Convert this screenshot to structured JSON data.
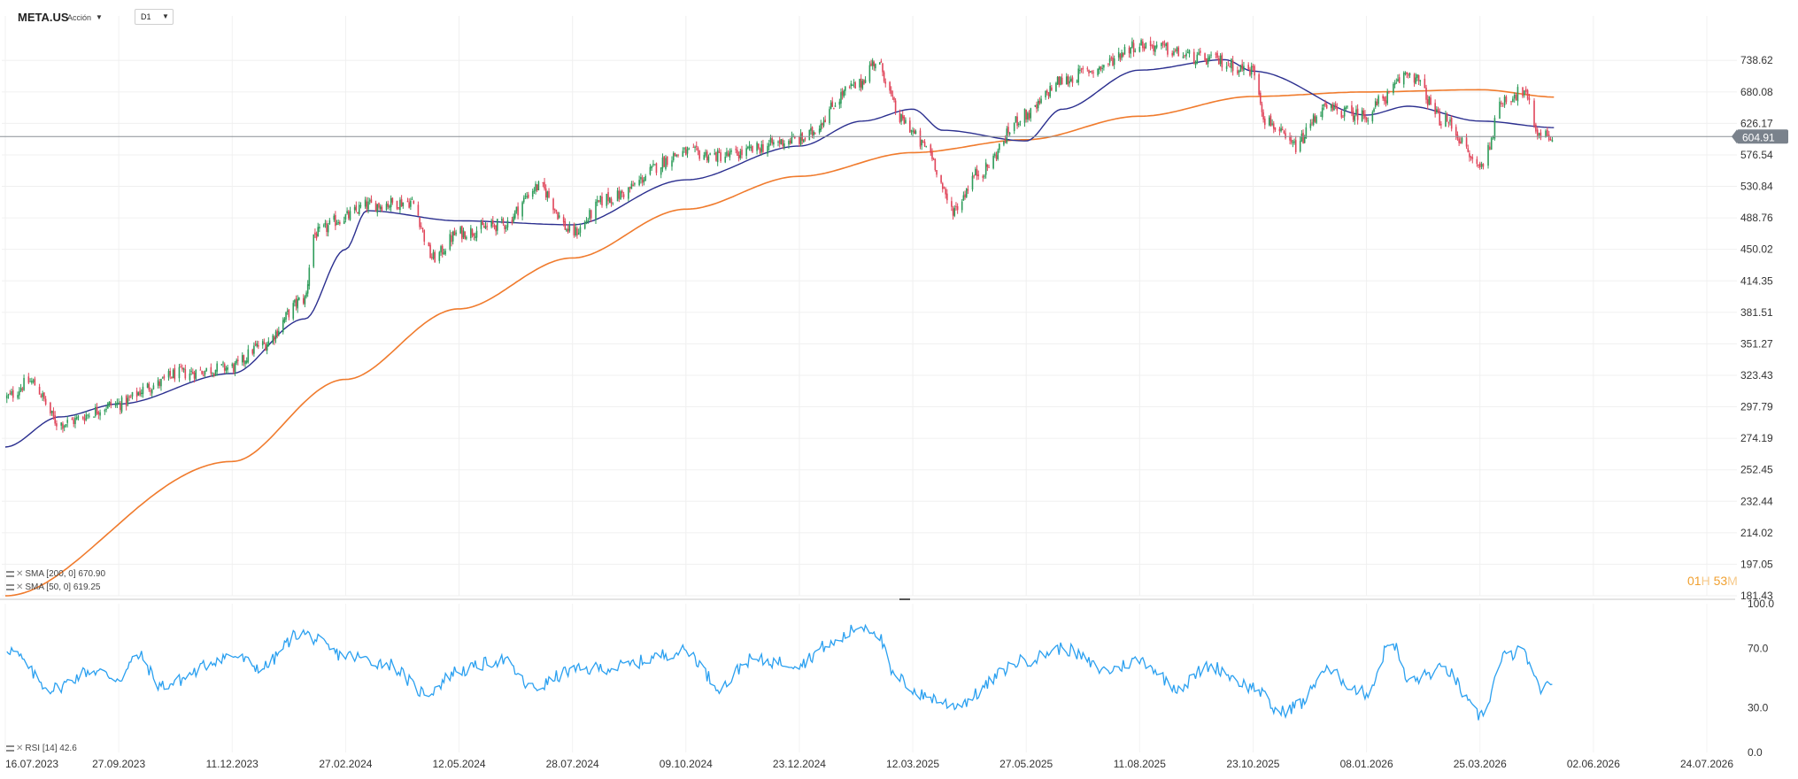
{
  "header": {
    "symbol": "META.US",
    "instrument_type": "Acción",
    "timeframe": "D1"
  },
  "indicators": {
    "sma200": "SMA [200, 0] 670.90",
    "sma50": "SMA [50, 0] 619.25",
    "rsi": "RSI [14] 42.6"
  },
  "countdown": {
    "hours": "01",
    "h": "H",
    "minutes": "53",
    "m": "M"
  },
  "colors": {
    "up": "#2e9c5a",
    "down": "#e0455a",
    "sma50": "#2b2f8f",
    "sma200": "#f07b2d",
    "rsi": "#2aa0f0",
    "price_tag": "#7a828c"
  },
  "chart_data": [
    {
      "type": "candlestick",
      "title": "META.US",
      "price_axis_ticks": [
        738.62,
        680.08,
        626.17,
        576.54,
        530.84,
        488.76,
        450.02,
        414.35,
        381.51,
        351.27,
        323.43,
        297.79,
        274.19,
        252.45,
        232.44,
        214.02,
        197.05,
        181.43
      ],
      "price_scale": "log",
      "ylim": [
        181.43,
        830
      ],
      "last_price": 604.91,
      "x_tick_labels": [
        "16.07.2023",
        "27.09.2023",
        "11.12.2023",
        "27.02.2024",
        "12.05.2024",
        "28.07.2024",
        "09.10.2024",
        "23.12.2024",
        "12.03.2025",
        "27.05.2025",
        "11.08.2025",
        "23.10.2025",
        "08.01.2026",
        "25.03.2026",
        "02.06.2026",
        "24.07.2026"
      ],
      "close_anchors": [
        [
          "16.07.2023",
          305
        ],
        [
          "01.08.2023",
          318
        ],
        [
          "20.08.2023",
          285
        ],
        [
          "27.09.2023",
          300
        ],
        [
          "20.10.2023",
          315
        ],
        [
          "05.11.2023",
          325
        ],
        [
          "11.12.2023",
          330
        ],
        [
          "31.12.2023",
          350
        ],
        [
          "30.01.2024",
          395
        ],
        [
          "05.02.2024",
          468
        ],
        [
          "27.02.2024",
          490
        ],
        [
          "12.03.2024",
          505
        ],
        [
          "10.04.2024",
          510
        ],
        [
          "25.04.2024",
          440
        ],
        [
          "12.05.2024",
          470
        ],
        [
          "10.06.2024",
          480
        ],
        [
          "05.07.2024",
          530
        ],
        [
          "28.07.2024",
          470
        ],
        [
          "20.08.2024",
          515
        ],
        [
          "09.10.2024",
          580
        ],
        [
          "01.11.2024",
          575
        ],
        [
          "23.12.2024",
          600
        ],
        [
          "01.02.2025",
          690
        ],
        [
          "14.02.2025",
          736
        ],
        [
          "05.03.2025",
          630
        ],
        [
          "20.03.2025",
          590
        ],
        [
          "08.04.2025",
          500
        ],
        [
          "25.04.2025",
          550
        ],
        [
          "27.05.2025",
          640
        ],
        [
          "20.06.2025",
          700
        ],
        [
          "10.07.2025",
          720
        ],
        [
          "11.08.2025",
          770
        ],
        [
          "25.09.2025",
          740
        ],
        [
          "23.10.2025",
          720
        ],
        [
          "01.11.2025",
          630
        ],
        [
          "20.11.2025",
          590
        ],
        [
          "10.12.2025",
          650
        ],
        [
          "08.01.2026",
          640
        ],
        [
          "20.01.2026",
          670
        ],
        [
          "05.02.2026",
          715
        ],
        [
          "01.03.2026",
          630
        ],
        [
          "25.03.2026",
          560
        ],
        [
          "10.04.2026",
          670
        ],
        [
          "20.04.2026",
          680
        ],
        [
          "30.04.2026",
          610
        ],
        [
          "10.05.2026",
          604.91
        ]
      ],
      "sma50_anchors": [
        [
          "16.07.2023",
          268
        ],
        [
          "20.08.2023",
          290
        ],
        [
          "27.09.2023",
          300
        ],
        [
          "11.12.2023",
          325
        ],
        [
          "30.01.2024",
          375
        ],
        [
          "27.02.2024",
          450
        ],
        [
          "12.03.2024",
          498
        ],
        [
          "12.05.2024",
          485
        ],
        [
          "28.07.2024",
          480
        ],
        [
          "09.10.2024",
          540
        ],
        [
          "23.12.2024",
          590
        ],
        [
          "05.02.2025",
          630
        ],
        [
          "12.03.2025",
          650
        ],
        [
          "01.04.2025",
          615
        ],
        [
          "27.05.2025",
          598
        ],
        [
          "20.06.2025",
          650
        ],
        [
          "11.08.2025",
          720
        ],
        [
          "05.10.2025",
          740
        ],
        [
          "23.10.2025",
          718
        ],
        [
          "08.01.2026",
          640
        ],
        [
          "05.02.2026",
          655
        ],
        [
          "25.03.2026",
          630
        ],
        [
          "10.05.2026",
          619.25
        ]
      ],
      "sma200_anchors": [
        [
          "16.07.2023",
          181.4
        ],
        [
          "11.12.2023",
          258
        ],
        [
          "27.02.2024",
          320
        ],
        [
          "12.05.2024",
          385
        ],
        [
          "28.07.2024",
          440
        ],
        [
          "09.10.2024",
          500
        ],
        [
          "23.12.2024",
          545
        ],
        [
          "12.03.2025",
          580
        ],
        [
          "27.05.2025",
          600
        ],
        [
          "11.08.2025",
          638
        ],
        [
          "23.10.2025",
          672
        ],
        [
          "08.01.2026",
          680
        ],
        [
          "25.03.2026",
          684
        ],
        [
          "10.05.2026",
          670.9
        ]
      ]
    },
    {
      "type": "line",
      "title": "RSI [14]",
      "ylim": [
        0,
        100
      ],
      "y_tick_labels": [
        100.0,
        70.0,
        30.0,
        0.0
      ],
      "last_value": 42.6,
      "rsi_anchors": [
        [
          "16.07.2023",
          70
        ],
        [
          "15.08.2023",
          43
        ],
        [
          "10.09.2023",
          55
        ],
        [
          "27.09.2023",
          50
        ],
        [
          "10.10.2023",
          65
        ],
        [
          "25.10.2023",
          45
        ],
        [
          "11.12.2023",
          65
        ],
        [
          "31.12.2023",
          57
        ],
        [
          "27.01.2024",
          80
        ],
        [
          "27.02.2024",
          65
        ],
        [
          "25.03.2024",
          60
        ],
        [
          "20.04.2024",
          40
        ],
        [
          "12.05.2024",
          55
        ],
        [
          "10.06.2024",
          62
        ],
        [
          "01.07.2024",
          43
        ],
        [
          "28.07.2024",
          55
        ],
        [
          "20.08.2024",
          57
        ],
        [
          "09.10.2024",
          68
        ],
        [
          "01.11.2024",
          44
        ],
        [
          "20.11.2024",
          62
        ],
        [
          "23.12.2024",
          60
        ],
        [
          "12.01.2025",
          72
        ],
        [
          "05.02.2025",
          85
        ],
        [
          "14.02.2025",
          82
        ],
        [
          "28.02.2025",
          50
        ],
        [
          "20.03.2025",
          38
        ],
        [
          "08.04.2025",
          32
        ],
        [
          "27.05.2025",
          62
        ],
        [
          "20.06.2025",
          70
        ],
        [
          "20.07.2025",
          55
        ],
        [
          "11.08.2025",
          62
        ],
        [
          "05.09.2025",
          44
        ],
        [
          "25.09.2025",
          58
        ],
        [
          "23.10.2025",
          44
        ],
        [
          "10.11.2025",
          27
        ],
        [
          "25.11.2025",
          33
        ],
        [
          "10.12.2025",
          55
        ],
        [
          "08.01.2026",
          40
        ],
        [
          "25.01.2026",
          75
        ],
        [
          "05.02.2026",
          48
        ],
        [
          "01.03.2026",
          56
        ],
        [
          "25.03.2026",
          25
        ],
        [
          "10.04.2026",
          65
        ],
        [
          "20.04.2026",
          68
        ],
        [
          "30.04.2026",
          44
        ],
        [
          "10.05.2026",
          42.6
        ]
      ]
    }
  ]
}
